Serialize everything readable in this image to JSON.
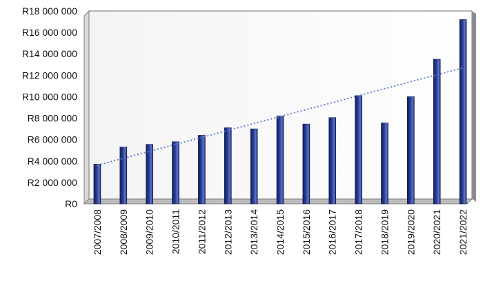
{
  "chart_data": {
    "type": "bar",
    "categories": [
      "2007/2008",
      "2008/2009",
      "2009/2010",
      "2010/2011",
      "2011/2012",
      "2012/2013",
      "2013/2014",
      "2014/2015",
      "2015/2016",
      "2016/2017",
      "2017/2018",
      "2018/2019",
      "2019/2020",
      "2020/2021",
      "2021/2022"
    ],
    "values": [
      3700000,
      5300000,
      5550000,
      5800000,
      6400000,
      7100000,
      7000000,
      8200000,
      7450000,
      8050000,
      10100000,
      7550000,
      10000000,
      13500000,
      17200000
    ],
    "trendline": {
      "type": "linear",
      "style": "dotted",
      "start_value": 3600000,
      "end_value": 12700000
    },
    "y_tick_labels": [
      "R0",
      "R2 000 000",
      "R4 000 000",
      "R6 000 000",
      "R8 000 000",
      "R10 000 000",
      "R12 000 000",
      "R14 000 000",
      "R16 000 000",
      "R18 000 000"
    ],
    "ylim": [
      0,
      18000000
    ],
    "ytick_step": 2000000,
    "title": "",
    "xlabel": "",
    "ylabel": "",
    "grid": false,
    "legend": "none",
    "colors": {
      "bar_dark": "#101f5e",
      "bar_mid": "#2b3f95",
      "bar_light": "#5f74c9",
      "trendline": "#5b7fd0",
      "plot_wall": "#d9d9d9",
      "plot_floor": "#bdbdbd",
      "axis": "#555555"
    }
  }
}
